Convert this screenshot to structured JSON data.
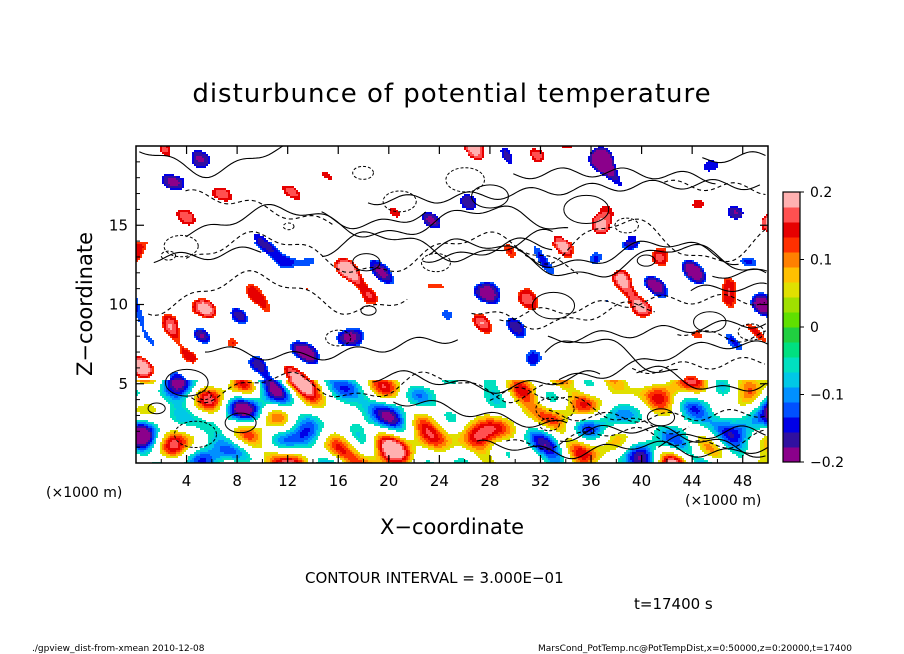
{
  "chart_data": {
    "type": "heatmap",
    "title": "disturbunce of potential temperature",
    "xlabel": "X−coordinate",
    "ylabel": "Z−coordinate",
    "x_unit_label_left": "(×1000 m)",
    "x_unit_label_right": "(×1000 m)",
    "xlim": [
      0,
      50
    ],
    "ylim": [
      0,
      20
    ],
    "x_ticks": [
      4,
      8,
      12,
      16,
      20,
      24,
      28,
      32,
      36,
      40,
      44,
      48
    ],
    "x_tick_labels": [
      "4",
      "8",
      "12",
      "16",
      "20",
      "24",
      "28",
      "32",
      "36",
      "40",
      "44",
      "48"
    ],
    "y_ticks": [
      5,
      10,
      15
    ],
    "y_tick_labels": [
      "5",
      "10",
      "15"
    ],
    "colorbar": {
      "min": -0.2,
      "max": 0.2,
      "ticks": [
        0.2,
        0.1,
        0,
        -0.1,
        -0.2
      ],
      "tick_labels": [
        "0.2",
        "0.1",
        "0",
        "−0.1",
        "−0.2"
      ],
      "colors": [
        "#8b008b",
        "#3010a0",
        "#0000e6",
        "#0050ff",
        "#0090ff",
        "#00c8e6",
        "#00e0c0",
        "#00e080",
        "#20d040",
        "#60e000",
        "#a0e000",
        "#e0e000",
        "#ffc000",
        "#ff8000",
        "#ff3000",
        "#e60000",
        "#ff5050",
        "#ffb0b0"
      ]
    },
    "contour_interval_text": "CONTOUR INTERVAL = 3.000E−01",
    "time_text": "t=17400 s",
    "grid": false
  },
  "footer": {
    "left": "./gpview_dist-from-xmean   2010-12-08",
    "right": "MarsCond_PotTemp.nc@PotTempDist,x=0:50000,z=0:20000,t=17400"
  }
}
